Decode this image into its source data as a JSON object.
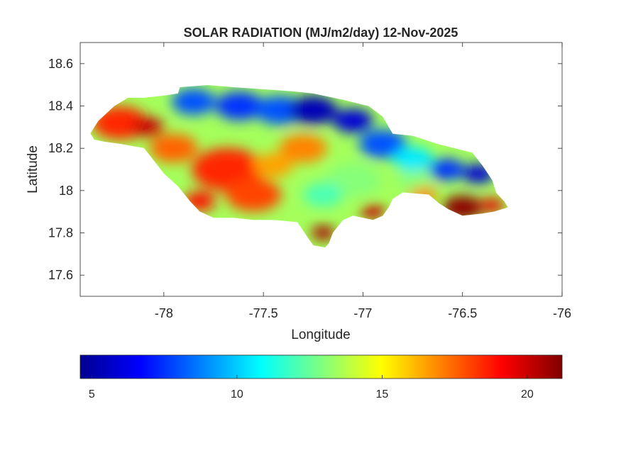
{
  "chart_data": {
    "type": "heatmap",
    "title": "SOLAR RADIATION (MJ/m2/day) 12-Nov-2025",
    "xlabel": "Longitude",
    "ylabel": "Latitude",
    "xlim": [
      -78.42,
      -76
    ],
    "ylim": [
      17.5,
      18.7
    ],
    "xticks": [
      -78,
      -77.5,
      -77,
      -76.5,
      -76
    ],
    "xtick_labels": [
      "-78",
      "-77.5",
      "-77",
      "-76.5",
      "-76"
    ],
    "yticks": [
      17.6,
      17.8,
      18,
      18.2,
      18.4,
      18.6
    ],
    "ytick_labels": [
      "17.6",
      "17.8",
      "18",
      "18.2",
      "18.4",
      "18.6"
    ],
    "grid": false,
    "colormap": "jet",
    "colorbar": {
      "location": "bottom",
      "clim": [
        4.6,
        21.2
      ],
      "ticks": [
        5,
        10,
        15,
        20
      ],
      "tick_labels": [
        "5",
        "10",
        "15",
        "20"
      ]
    },
    "region_outline": [
      [
        -78.37,
        18.27
      ],
      [
        -78.33,
        18.33
      ],
      [
        -78.25,
        18.4
      ],
      [
        -78.18,
        18.44
      ],
      [
        -78.1,
        18.44
      ],
      [
        -78.0,
        18.45
      ],
      [
        -77.93,
        18.46
      ],
      [
        -77.92,
        18.49
      ],
      [
        -77.78,
        18.5
      ],
      [
        -77.65,
        18.49
      ],
      [
        -77.5,
        18.48
      ],
      [
        -77.35,
        18.47
      ],
      [
        -77.25,
        18.46
      ],
      [
        -77.1,
        18.43
      ],
      [
        -76.97,
        18.4
      ],
      [
        -76.9,
        18.35
      ],
      [
        -76.85,
        18.27
      ],
      [
        -76.75,
        18.26
      ],
      [
        -76.62,
        18.22
      ],
      [
        -76.45,
        18.18
      ],
      [
        -76.4,
        18.12
      ],
      [
        -76.35,
        18.05
      ],
      [
        -76.33,
        17.99
      ],
      [
        -76.29,
        17.95
      ],
      [
        -76.27,
        17.92
      ],
      [
        -76.34,
        17.9
      ],
      [
        -76.4,
        17.89
      ],
      [
        -76.5,
        17.88
      ],
      [
        -76.57,
        17.91
      ],
      [
        -76.62,
        17.94
      ],
      [
        -76.67,
        17.98
      ],
      [
        -76.8,
        17.99
      ],
      [
        -76.85,
        17.96
      ],
      [
        -76.87,
        17.92
      ],
      [
        -76.9,
        17.88
      ],
      [
        -76.95,
        17.86
      ],
      [
        -77.0,
        17.87
      ],
      [
        -77.05,
        17.88
      ],
      [
        -77.1,
        17.86
      ],
      [
        -77.15,
        17.8
      ],
      [
        -77.17,
        17.75
      ],
      [
        -77.19,
        17.73
      ],
      [
        -77.25,
        17.74
      ],
      [
        -77.28,
        17.78
      ],
      [
        -77.33,
        17.85
      ],
      [
        -77.45,
        17.86
      ],
      [
        -77.55,
        17.86
      ],
      [
        -77.65,
        17.87
      ],
      [
        -77.75,
        17.87
      ],
      [
        -77.82,
        17.9
      ],
      [
        -77.87,
        17.95
      ],
      [
        -77.93,
        18.02
      ],
      [
        -78.0,
        18.08
      ],
      [
        -78.05,
        18.14
      ],
      [
        -78.1,
        18.2
      ],
      [
        -78.22,
        18.22
      ],
      [
        -78.3,
        18.23
      ],
      [
        -78.35,
        18.24
      ]
    ],
    "hotspots": [
      {
        "lon": -78.22,
        "lat": 18.32,
        "value": 18.5,
        "radius": 0.14
      },
      {
        "lon": -78.08,
        "lat": 18.3,
        "value": 20.0,
        "radius": 0.08
      },
      {
        "lon": -77.95,
        "lat": 18.2,
        "value": 17.5,
        "radius": 0.12
      },
      {
        "lon": -77.85,
        "lat": 18.42,
        "value": 8.0,
        "radius": 0.11
      },
      {
        "lon": -77.62,
        "lat": 18.4,
        "value": 7.5,
        "radius": 0.12
      },
      {
        "lon": -77.42,
        "lat": 18.38,
        "value": 8.0,
        "radius": 0.12
      },
      {
        "lon": -77.25,
        "lat": 18.38,
        "value": 5.5,
        "radius": 0.12
      },
      {
        "lon": -77.05,
        "lat": 18.33,
        "value": 6.0,
        "radius": 0.1
      },
      {
        "lon": -76.9,
        "lat": 18.22,
        "value": 8.0,
        "radius": 0.12
      },
      {
        "lon": -76.75,
        "lat": 18.15,
        "value": 10.5,
        "radius": 0.1
      },
      {
        "lon": -76.58,
        "lat": 18.1,
        "value": 7.5,
        "radius": 0.09
      },
      {
        "lon": -76.42,
        "lat": 18.08,
        "value": 6.0,
        "radius": 0.08
      },
      {
        "lon": -77.68,
        "lat": 18.1,
        "value": 18.5,
        "radius": 0.18
      },
      {
        "lon": -77.55,
        "lat": 17.98,
        "value": 18.0,
        "radius": 0.14
      },
      {
        "lon": -77.82,
        "lat": 17.95,
        "value": 19.0,
        "radius": 0.08
      },
      {
        "lon": -77.3,
        "lat": 18.2,
        "value": 17.0,
        "radius": 0.12
      },
      {
        "lon": -77.45,
        "lat": 18.12,
        "value": 16.5,
        "radius": 0.1
      },
      {
        "lon": -77.2,
        "lat": 17.8,
        "value": 20.5,
        "radius": 0.06
      },
      {
        "lon": -76.95,
        "lat": 17.9,
        "value": 20.0,
        "radius": 0.06
      },
      {
        "lon": -76.5,
        "lat": 17.92,
        "value": 21.0,
        "radius": 0.1
      },
      {
        "lon": -76.35,
        "lat": 17.93,
        "value": 19.5,
        "radius": 0.06
      },
      {
        "lon": -76.7,
        "lat": 17.98,
        "value": 17.0,
        "radius": 0.07
      },
      {
        "lon": -77.05,
        "lat": 18.05,
        "value": 13.0,
        "radius": 0.14
      },
      {
        "lon": -77.2,
        "lat": 17.98,
        "value": 12.0,
        "radius": 0.1
      },
      {
        "lon": -76.75,
        "lat": 18.05,
        "value": 13.0,
        "radius": 0.08
      }
    ]
  }
}
